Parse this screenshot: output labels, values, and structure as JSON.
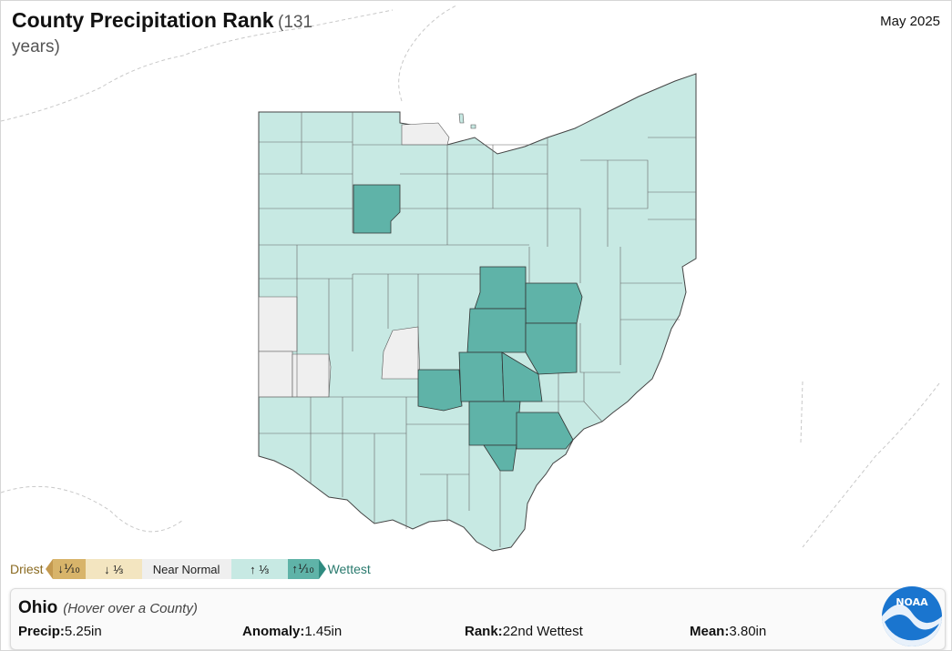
{
  "title": "County Precipitation Rank",
  "title_sub": "(131 years)",
  "period": "May 2025",
  "legend": {
    "driest": "Driest",
    "wettest": "Wettest",
    "items": [
      {
        "label": "↓⅒",
        "color": "#d8b46a"
      },
      {
        "label": "↓ ⅓",
        "color": "#f3e5c0"
      },
      {
        "label": "Near Normal",
        "color": "#efefef"
      },
      {
        "label": "↑ ⅓",
        "color": "#c7e9e3"
      },
      {
        "label": "↑⅒",
        "color": "#5fb3a8"
      }
    ]
  },
  "info": {
    "state": "Ohio",
    "hint": "(Hover over a County)",
    "precip_label": "Precip:",
    "precip_value": "5.25in",
    "anomaly_label": "Anomaly:",
    "anomaly_value": "1.45in",
    "rank_label": "Rank:",
    "rank_value": "22nd Wettest",
    "mean_label": "Mean:",
    "mean_value": "3.80in"
  },
  "logo_text": "NOAA",
  "colors": {
    "wet_top": "#5fb3a8",
    "wet_third": "#c7e9e3",
    "normal": "#efefef",
    "county_border": "#555555"
  }
}
